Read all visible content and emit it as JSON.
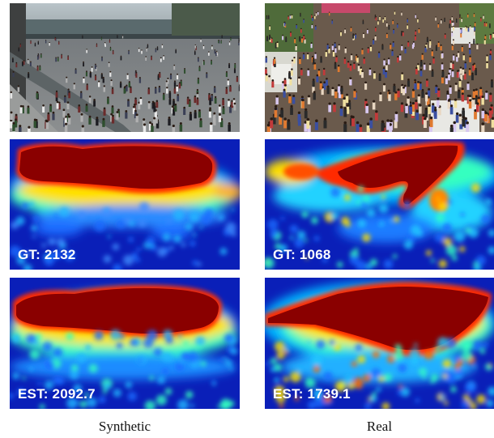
{
  "figure": {
    "columns": [
      {
        "caption": "Synthetic",
        "gt_label": "GT: 2132",
        "est_label": "EST: 2092.7"
      },
      {
        "caption": "Real",
        "gt_label": "GT: 1068",
        "est_label": "EST: 1739.1"
      }
    ],
    "colors": {
      "heatmap_background": "#0a1fb8",
      "heatmap_peak": "#8a0000",
      "label_text": "#ffffff"
    }
  }
}
